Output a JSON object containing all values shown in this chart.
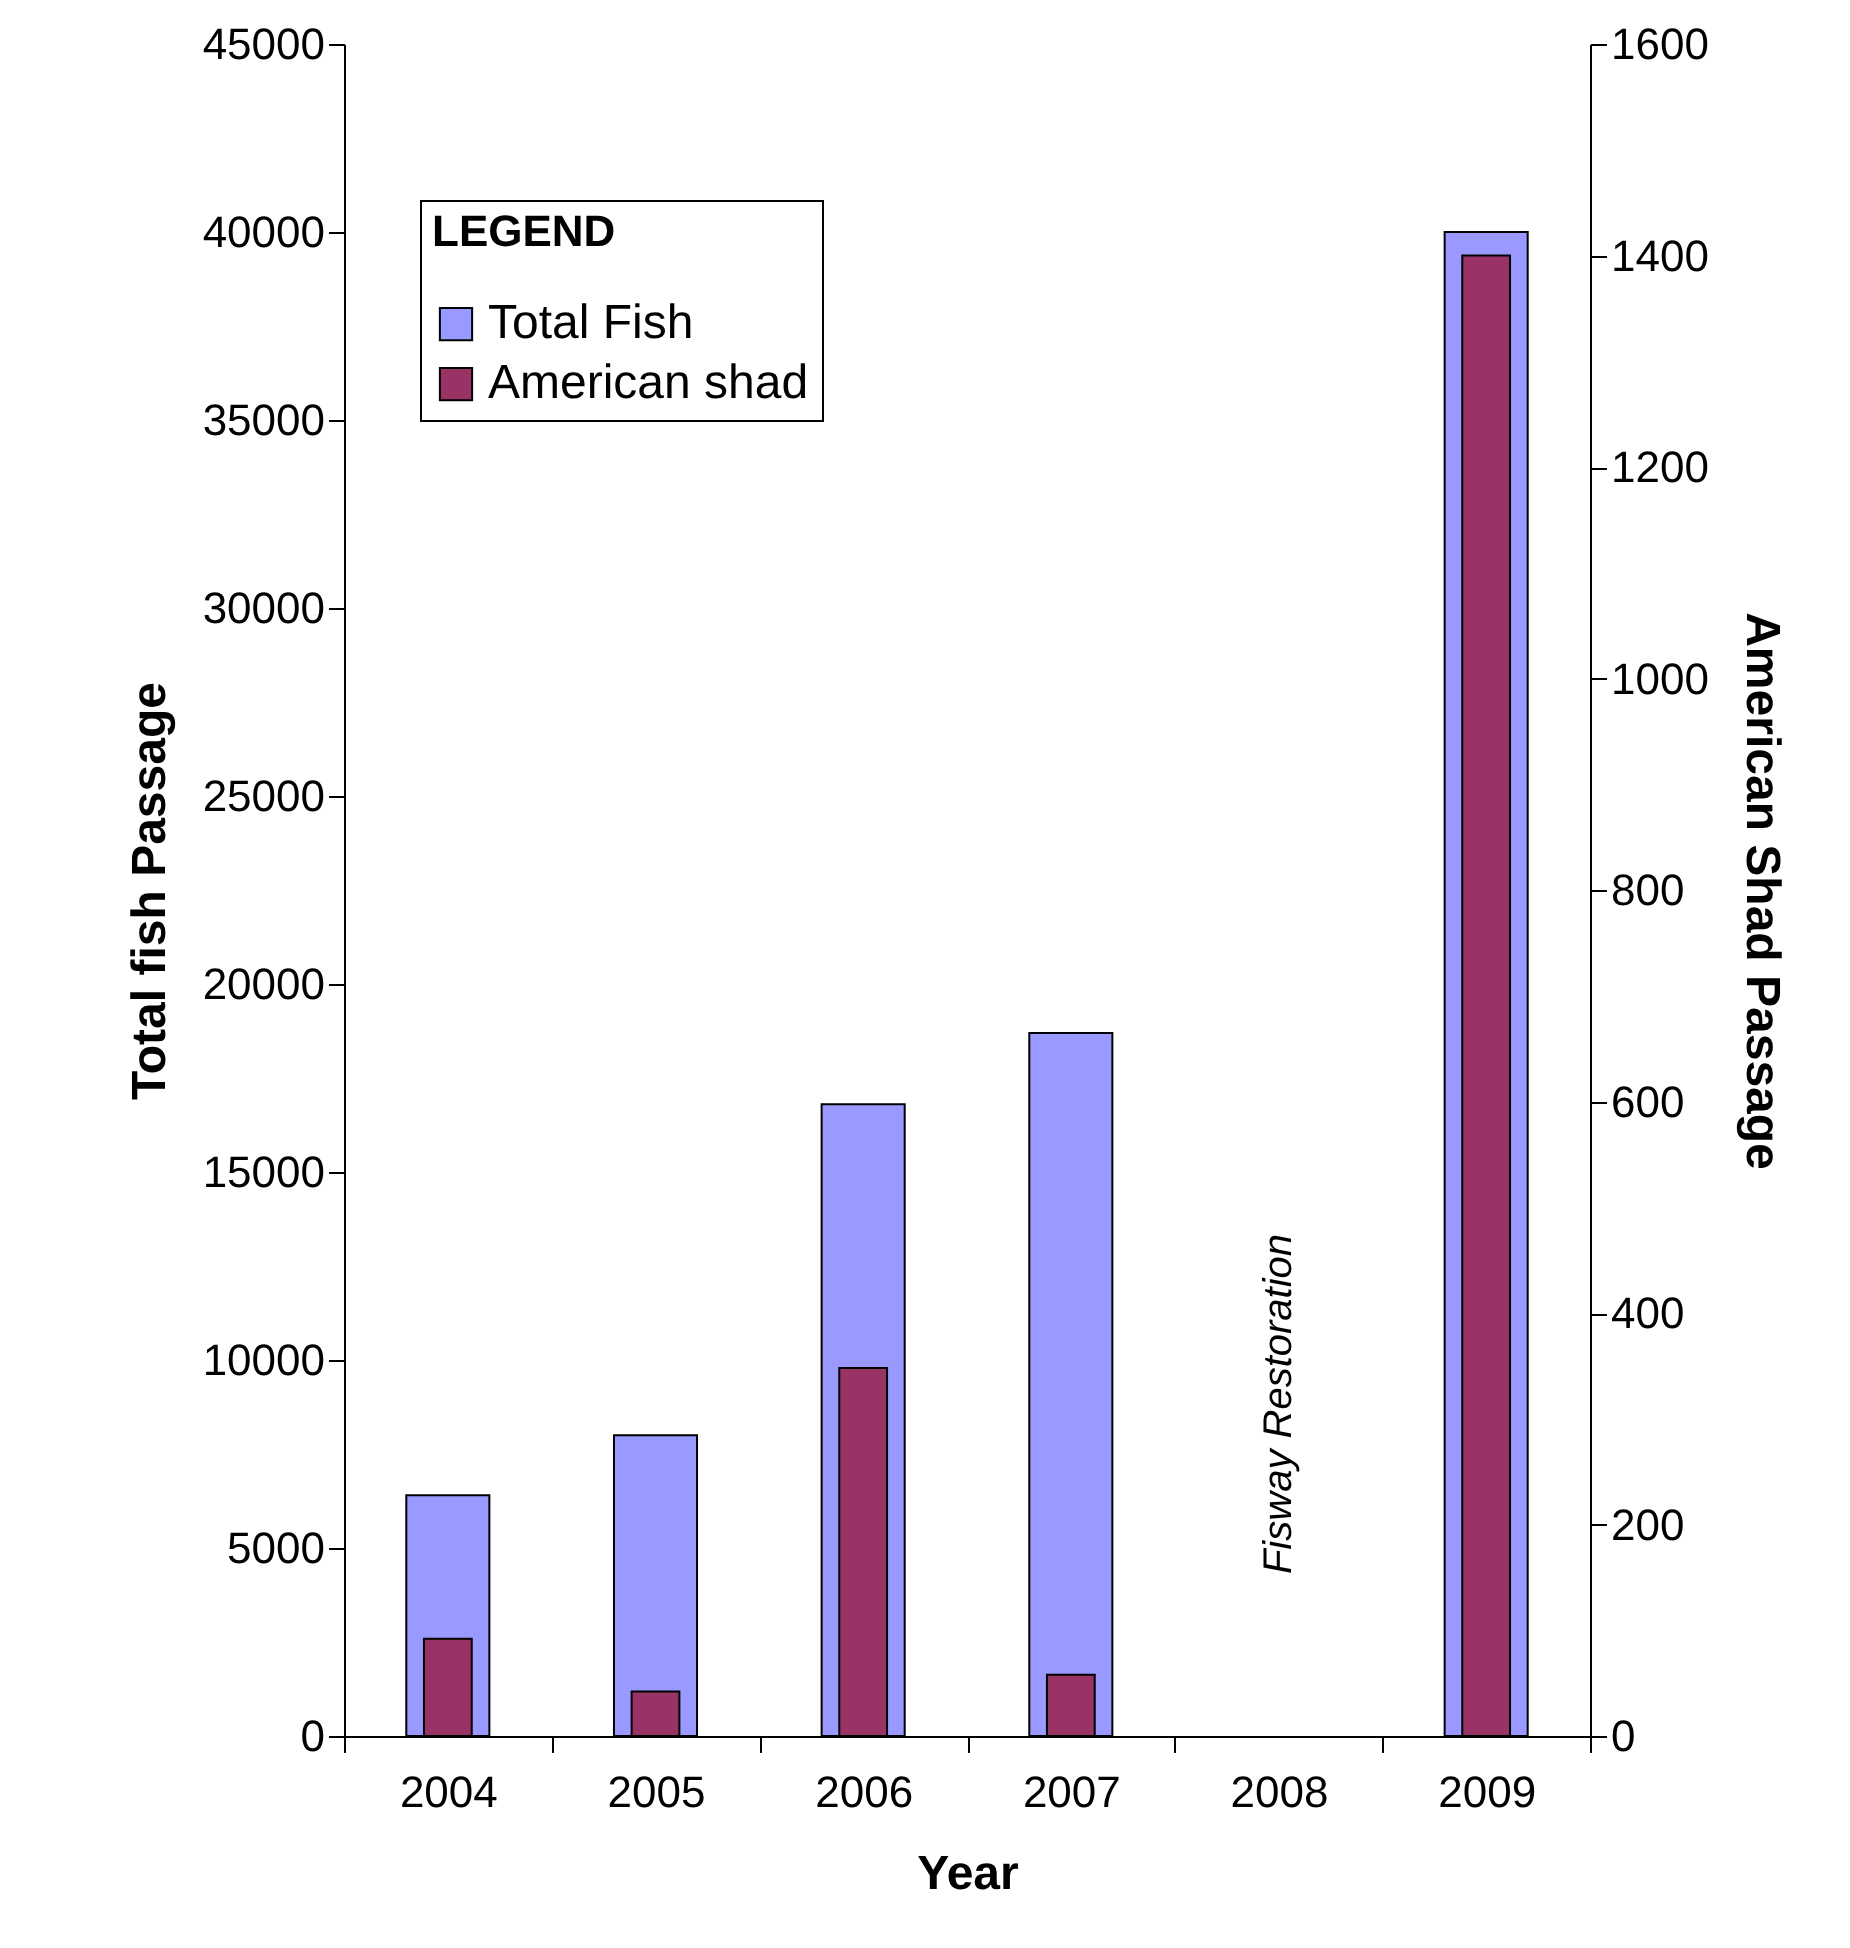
{
  "chart_data": {
    "type": "bar",
    "xlabel": "Year",
    "ylabel": "Total fish Passage",
    "y2label": "American Shad Passage",
    "legend_title": "LEGEND",
    "legend": "top left",
    "categories": [
      "2004",
      "2005",
      "2006",
      "2007",
      "2008",
      "2009"
    ],
    "series": [
      {
        "name": "Total Fish",
        "color": "#9999ff",
        "values": [
          6400,
          8000,
          16800,
          18700,
          null,
          40000
        ]
      },
      {
        "name": "American shad",
        "color": "#993366",
        "axis": "y2",
        "values": [
          92,
          42,
          348,
          58,
          null,
          1400
        ]
      }
    ],
    "ylim": [
      0,
      45000
    ],
    "yticks": [
      0,
      5000,
      10000,
      15000,
      20000,
      25000,
      30000,
      35000,
      40000,
      45000
    ],
    "y2lim": [
      0,
      1600
    ],
    "y2ticks": [
      0,
      200,
      400,
      600,
      800,
      1000,
      1200,
      1400,
      1600
    ],
    "annotations": [
      "Fisway Restoration"
    ]
  }
}
